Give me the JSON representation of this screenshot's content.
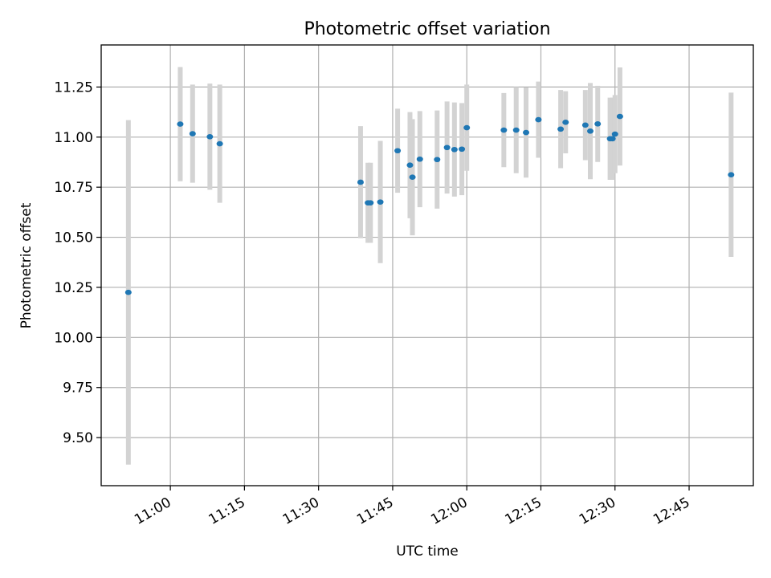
{
  "chart_data": {
    "type": "scatter",
    "title": "Photometric offset variation",
    "xlabel": "UTC time",
    "ylabel": "Photometric offset",
    "x_ticks": [
      "11:00",
      "11:15",
      "11:30",
      "11:45",
      "12:00",
      "12:15",
      "12:30",
      "12:45"
    ],
    "y_ticks": [
      "9.50",
      "9.75",
      "10.00",
      "10.25",
      "10.50",
      "10.75",
      "11.00",
      "11.25"
    ],
    "xlim": [
      "10:46",
      "12:58"
    ],
    "ylim": [
      9.26,
      11.46
    ],
    "grid": true,
    "colors": {
      "points": "#1f77b4",
      "errorbars": "#d3d3d3"
    },
    "points": [
      {
        "x": "10:51:30",
        "y": 10.225,
        "err": 0.86
      },
      {
        "x": "11:02:00",
        "y": 11.065,
        "err": 0.285
      },
      {
        "x": "11:04:30",
        "y": 11.017,
        "err": 0.245
      },
      {
        "x": "11:08:00",
        "y": 11.002,
        "err": 0.265
      },
      {
        "x": "11:10:00",
        "y": 10.967,
        "err": 0.295
      },
      {
        "x": "11:38:30",
        "y": 10.775,
        "err": 0.28
      },
      {
        "x": "11:40:00",
        "y": 10.672,
        "err": 0.2
      },
      {
        "x": "11:40:30",
        "y": 10.672,
        "err": 0.2
      },
      {
        "x": "11:42:30",
        "y": 10.676,
        "err": 0.305
      },
      {
        "x": "11:46:00",
        "y": 10.932,
        "err": 0.21
      },
      {
        "x": "11:48:30",
        "y": 10.86,
        "err": 0.265
      },
      {
        "x": "11:49:00",
        "y": 10.8,
        "err": 0.29
      },
      {
        "x": "11:50:30",
        "y": 10.89,
        "err": 0.24
      },
      {
        "x": "11:54:00",
        "y": 10.888,
        "err": 0.245
      },
      {
        "x": "11:56:00",
        "y": 10.948,
        "err": 0.23
      },
      {
        "x": "11:57:30",
        "y": 10.938,
        "err": 0.235
      },
      {
        "x": "11:59:00",
        "y": 10.94,
        "err": 0.23
      },
      {
        "x": "12:00:00",
        "y": 11.047,
        "err": 0.215
      },
      {
        "x": "12:07:30",
        "y": 11.035,
        "err": 0.185
      },
      {
        "x": "12:10:00",
        "y": 11.035,
        "err": 0.215
      },
      {
        "x": "12:12:00",
        "y": 11.023,
        "err": 0.225
      },
      {
        "x": "12:14:30",
        "y": 11.087,
        "err": 0.19
      },
      {
        "x": "12:19:00",
        "y": 11.04,
        "err": 0.195
      },
      {
        "x": "12:20:00",
        "y": 11.074,
        "err": 0.155
      },
      {
        "x": "12:24:00",
        "y": 11.06,
        "err": 0.175
      },
      {
        "x": "12:25:00",
        "y": 11.03,
        "err": 0.24
      },
      {
        "x": "12:26:30",
        "y": 11.066,
        "err": 0.19
      },
      {
        "x": "12:29:00",
        "y": 10.992,
        "err": 0.205
      },
      {
        "x": "12:29:30",
        "y": 10.992,
        "err": 0.205
      },
      {
        "x": "12:30:00",
        "y": 11.015,
        "err": 0.195
      },
      {
        "x": "12:31:00",
        "y": 11.103,
        "err": 0.245
      },
      {
        "x": "12:53:30",
        "y": 10.812,
        "err": 0.41
      }
    ]
  }
}
